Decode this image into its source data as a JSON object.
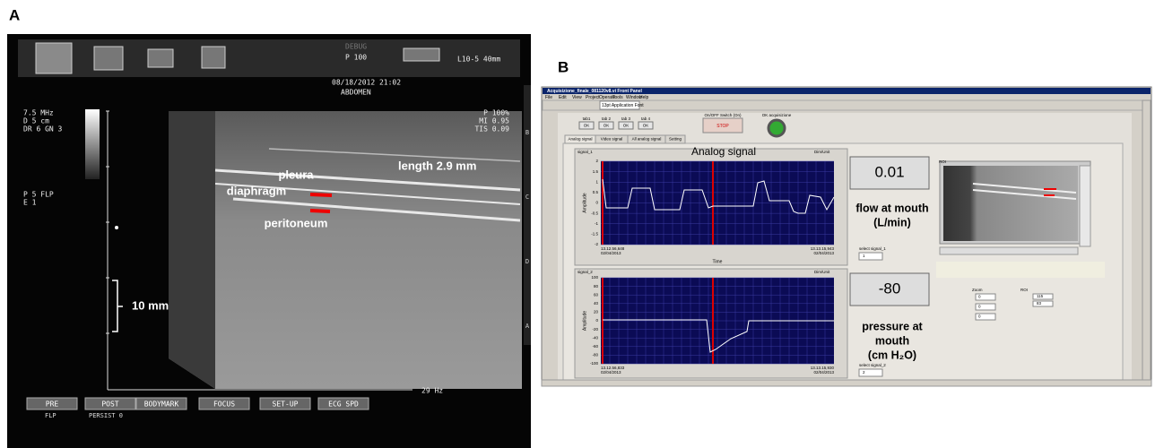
{
  "panel_a": {
    "label": "A",
    "header": {
      "mode": "DEBUG",
      "power": "P 100",
      "probe": "L10-5 40mm",
      "datetime": "08/18/2012 21:02",
      "preset": "ABDOMEN"
    },
    "left_info": [
      "7.5 MHz",
      "D 5 cm",
      "DR 6 GN 3"
    ],
    "left_info2": [
      "P 5 FLP",
      "E 1"
    ],
    "right_info": [
      "P 100%",
      "MI 0.95",
      "TIS 0.09"
    ],
    "annotations": [
      "pleura",
      "diaphragm",
      "peritoneum",
      "length 2.9 mm",
      "10 mm"
    ],
    "frame_rate": "29 Hz",
    "side_labels": [
      "B",
      "C",
      "D",
      "A"
    ],
    "buttons": [
      {
        "label": "PRE",
        "sub": "FLP"
      },
      {
        "label": "POST",
        "sub": "PERSIST 0"
      },
      {
        "label": "BODYMARK"
      },
      {
        "label": "FOCUS"
      },
      {
        "label": "SET-UP"
      },
      {
        "label": "ECG SPD"
      }
    ]
  },
  "panel_b": {
    "label": "B",
    "window_title": "Acquisizione_finale_081120v8.vi Front Panel",
    "menu": [
      "File",
      "Edit",
      "View",
      "Project",
      "Operate",
      "Tools",
      "Window",
      "Help"
    ],
    "font": "13pt Application Font",
    "tab_buttons": [
      {
        "label": "tab1",
        "button": "OK"
      },
      {
        "label": "tab 2",
        "button": "OK"
      },
      {
        "label": "tab 3",
        "button": "OK"
      },
      {
        "label": "tab 4",
        "button": "OK"
      }
    ],
    "switch_label": "On/OFF Switch (On)",
    "stop": "STOP",
    "ok_label": "OK acquisizione",
    "tabs": [
      "Analog signal",
      "Video signal",
      "All analog signal",
      "Setting"
    ],
    "heading": "Analog signal",
    "chart1": {
      "name": "signal_1",
      "dim": "Dim/Unit",
      "y_label": "Amplitude",
      "yticks": [
        2,
        1.5,
        1,
        0.5,
        0,
        -0.5,
        -1,
        -1.5,
        -2
      ],
      "x_start": [
        "13.12.56,648",
        "02/04/2013"
      ],
      "x_end": [
        "13.13.15,943",
        "02/04/2013"
      ],
      "x_label": "Time"
    },
    "chart2": {
      "name": "signal_2",
      "dim": "Dim/Unit",
      "y_label": "Amplitude",
      "yticks": [
        100,
        80,
        60,
        40,
        20,
        0,
        -20,
        -40,
        -60,
        -80,
        -100
      ],
      "x_start": [
        "13.12.56,833",
        "02/04/2013"
      ],
      "x_end": [
        "13.13.15,930",
        "02/04/2013"
      ]
    },
    "flow": {
      "value": "0.01",
      "label": [
        "flow at mouth",
        "(L/min)"
      ],
      "select_label": "select signal_1",
      "select_value": "1"
    },
    "pressure": {
      "value": "-80",
      "label": [
        "pressure at",
        "mouth",
        "(cm H₂O)"
      ],
      "select_label": "select signal_2",
      "select_value": "2"
    },
    "roi_title": "ROI",
    "zoom": {
      "label": "Zoom",
      "values": [
        "0",
        "0",
        "0"
      ]
    },
    "roi": {
      "label": "ROI",
      "values": [
        "115",
        "83"
      ]
    }
  }
}
